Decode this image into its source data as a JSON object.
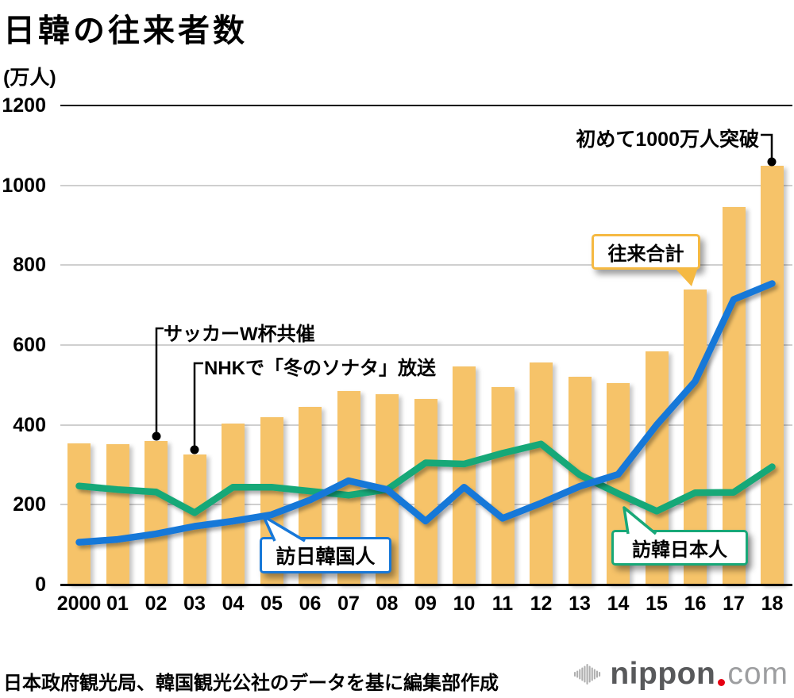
{
  "title": "日韓の往来者数",
  "y_axis_unit": "(万人)",
  "source_note": "日本政府観光局、韓国観光公社のデータを基に編集部作成",
  "logo": {
    "word": "nippon",
    "tld": "com"
  },
  "colors": {
    "bar": "#F6C369",
    "blue_line": "#1878D8",
    "green_line": "#18A878",
    "callout_total_border": "#F5B942",
    "grid": "#CFCFCF",
    "axis": "#000000",
    "logo_word": "#58595B",
    "logo_tld": "#9D9EA0",
    "logo_red": "#E60012",
    "logo_wave": "#AFAFAF"
  },
  "chart_data": {
    "type": "bar",
    "subtype": "combo-bar-line",
    "categories": [
      "2000",
      "01",
      "02",
      "03",
      "04",
      "05",
      "06",
      "07",
      "08",
      "09",
      "10",
      "11",
      "12",
      "13",
      "14",
      "15",
      "16",
      "17",
      "18"
    ],
    "series": [
      {
        "name": "往来合計",
        "type": "bar",
        "color": "#F6C369",
        "values": [
          353,
          351,
          359,
          326,
          403,
          419,
          446,
          484,
          476,
          464,
          546,
          495,
          556,
          521,
          504,
          584,
          739,
          945,
          1049
        ]
      },
      {
        "name": "訪日韓国人",
        "type": "line",
        "color": "#1878D8",
        "values": [
          106,
          113,
          127,
          146,
          159,
          175,
          212,
          260,
          238,
          159,
          244,
          166,
          204,
          246,
          276,
          400,
          509,
          714,
          754
        ]
      },
      {
        "name": "訪韓日本人",
        "type": "line",
        "color": "#18A878",
        "values": [
          247,
          238,
          232,
          180,
          244,
          244,
          234,
          224,
          238,
          305,
          302,
          329,
          352,
          275,
          228,
          184,
          230,
          231,
          295
        ]
      }
    ],
    "ylabel": "(万人)",
    "ylim": [
      0,
      1200
    ],
    "yticks": [
      0,
      200,
      400,
      600,
      800,
      1000,
      1200
    ],
    "grid": "horizontal",
    "legend": "inline-callouts",
    "annotations": [
      {
        "text": "サッカーW杯共催",
        "target_year": "02"
      },
      {
        "text": "NHKで「冬のソナタ」放送",
        "target_year": "03"
      },
      {
        "text": "初めて1000万人突破",
        "target_year": "18"
      }
    ]
  }
}
